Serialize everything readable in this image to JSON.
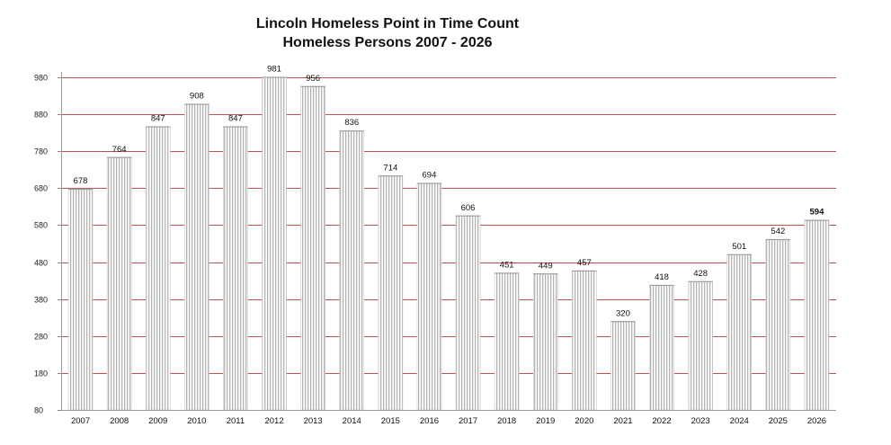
{
  "chart_data": {
    "type": "bar",
    "title_line1": "Lincoln Homeless Point in Time Count",
    "title_line2": "Homeless Persons 2007 - 2026",
    "categories": [
      "2007",
      "2008",
      "2009",
      "2010",
      "2011",
      "2012",
      "2013",
      "2014",
      "2015",
      "2016",
      "2017",
      "2018",
      "2019",
      "2020",
      "2021",
      "2022",
      "2023",
      "2024",
      "2025",
      "2026"
    ],
    "values": [
      678,
      764,
      847,
      908,
      847,
      981,
      956,
      836,
      714,
      694,
      606,
      451,
      449,
      457,
      320,
      418,
      428,
      501,
      542,
      594
    ],
    "ylim": [
      80,
      980
    ],
    "yticks": [
      80,
      180,
      280,
      380,
      480,
      580,
      680,
      780,
      880,
      980
    ],
    "grid": true,
    "gridline_color": "#c0504d",
    "bold_label_category": "2026",
    "xlabel": "",
    "ylabel": ""
  }
}
